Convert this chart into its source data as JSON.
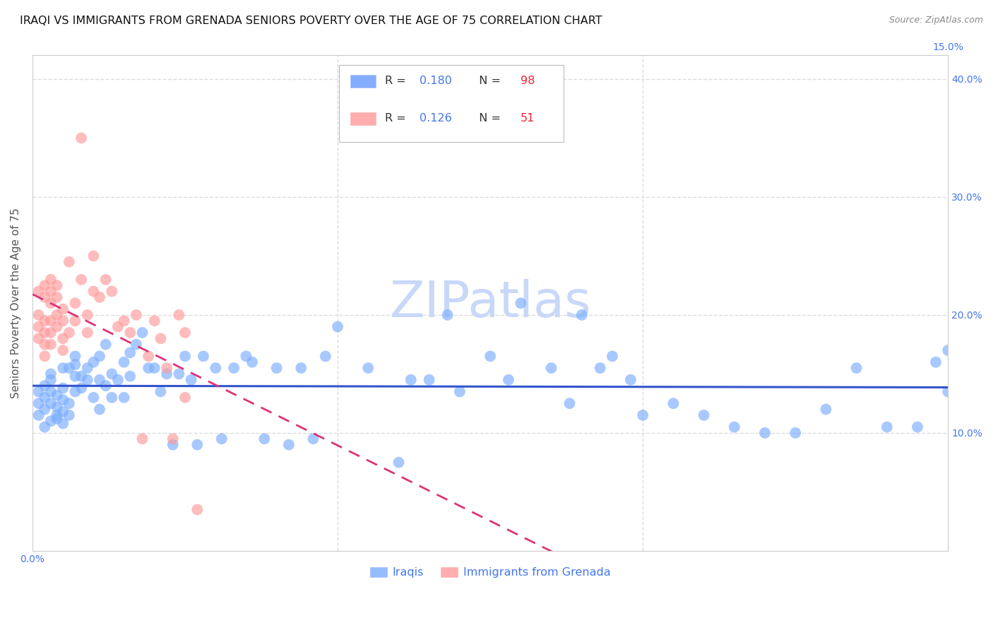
{
  "title": "IRAQI VS IMMIGRANTS FROM GRENADA SENIORS POVERTY OVER THE AGE OF 75 CORRELATION CHART",
  "source": "Source: ZipAtlas.com",
  "ylabel": "Seniors Poverty Over the Age of 75",
  "xlim": [
    0.0,
    0.15
  ],
  "ylim": [
    0.0,
    0.42
  ],
  "xticks": [
    0.0,
    0.05,
    0.1,
    0.15
  ],
  "xticklabels": [
    "0.0%",
    "",
    "",
    "15.0%"
  ],
  "yticks": [
    0.1,
    0.2,
    0.3,
    0.4
  ],
  "yticklabels": [
    "10.0%",
    "20.0%",
    "30.0%",
    "40.0%"
  ],
  "watermark": "ZIPatlas",
  "iraqis": {
    "color": "#7aadff",
    "line_color": "#3355cc",
    "line_style": "solid",
    "R": 0.18,
    "N": 98,
    "x": [
      0.001,
      0.001,
      0.001,
      0.002,
      0.002,
      0.002,
      0.002,
      0.003,
      0.003,
      0.003,
      0.003,
      0.003,
      0.004,
      0.004,
      0.004,
      0.004,
      0.005,
      0.005,
      0.005,
      0.005,
      0.005,
      0.006,
      0.006,
      0.006,
      0.007,
      0.007,
      0.007,
      0.007,
      0.008,
      0.008,
      0.009,
      0.009,
      0.01,
      0.01,
      0.011,
      0.011,
      0.011,
      0.012,
      0.012,
      0.013,
      0.013,
      0.014,
      0.015,
      0.015,
      0.016,
      0.016,
      0.017,
      0.018,
      0.019,
      0.02,
      0.021,
      0.022,
      0.023,
      0.024,
      0.025,
      0.026,
      0.027,
      0.028,
      0.03,
      0.031,
      0.033,
      0.035,
      0.036,
      0.038,
      0.04,
      0.042,
      0.044,
      0.046,
      0.048,
      0.05,
      0.055,
      0.06,
      0.062,
      0.065,
      0.068,
      0.07,
      0.075,
      0.078,
      0.08,
      0.085,
      0.088,
      0.09,
      0.093,
      0.095,
      0.098,
      0.1,
      0.105,
      0.11,
      0.115,
      0.12,
      0.125,
      0.13,
      0.135,
      0.14,
      0.145,
      0.148,
      0.15,
      0.15
    ],
    "y": [
      0.115,
      0.125,
      0.135,
      0.105,
      0.12,
      0.13,
      0.14,
      0.11,
      0.125,
      0.135,
      0.145,
      0.15,
      0.112,
      0.122,
      0.132,
      0.115,
      0.118,
      0.128,
      0.138,
      0.108,
      0.155,
      0.115,
      0.125,
      0.155,
      0.148,
      0.158,
      0.135,
      0.165,
      0.138,
      0.148,
      0.155,
      0.145,
      0.13,
      0.16,
      0.12,
      0.145,
      0.165,
      0.14,
      0.175,
      0.13,
      0.15,
      0.145,
      0.16,
      0.13,
      0.148,
      0.168,
      0.175,
      0.185,
      0.155,
      0.155,
      0.135,
      0.15,
      0.09,
      0.15,
      0.165,
      0.145,
      0.09,
      0.165,
      0.155,
      0.095,
      0.155,
      0.165,
      0.16,
      0.095,
      0.155,
      0.09,
      0.155,
      0.095,
      0.165,
      0.19,
      0.155,
      0.075,
      0.145,
      0.145,
      0.2,
      0.135,
      0.165,
      0.145,
      0.21,
      0.155,
      0.125,
      0.2,
      0.155,
      0.165,
      0.145,
      0.115,
      0.125,
      0.115,
      0.105,
      0.1,
      0.1,
      0.12,
      0.155,
      0.105,
      0.105,
      0.16,
      0.135,
      0.17
    ]
  },
  "grenada": {
    "color": "#ff9999",
    "line_color": "#dd3377",
    "line_style": "dashed",
    "R": 0.126,
    "N": 51,
    "x": [
      0.001,
      0.001,
      0.001,
      0.001,
      0.002,
      0.002,
      0.002,
      0.002,
      0.002,
      0.002,
      0.003,
      0.003,
      0.003,
      0.003,
      0.003,
      0.003,
      0.004,
      0.004,
      0.004,
      0.004,
      0.005,
      0.005,
      0.005,
      0.005,
      0.006,
      0.006,
      0.007,
      0.007,
      0.008,
      0.008,
      0.009,
      0.009,
      0.01,
      0.01,
      0.011,
      0.012,
      0.013,
      0.014,
      0.015,
      0.016,
      0.017,
      0.018,
      0.019,
      0.02,
      0.021,
      0.022,
      0.023,
      0.024,
      0.025,
      0.025,
      0.027
    ],
    "y": [
      0.2,
      0.19,
      0.18,
      0.22,
      0.175,
      0.185,
      0.195,
      0.215,
      0.225,
      0.165,
      0.175,
      0.185,
      0.195,
      0.21,
      0.22,
      0.23,
      0.19,
      0.2,
      0.215,
      0.225,
      0.18,
      0.195,
      0.205,
      0.17,
      0.245,
      0.185,
      0.195,
      0.21,
      0.35,
      0.23,
      0.185,
      0.2,
      0.25,
      0.22,
      0.215,
      0.23,
      0.22,
      0.19,
      0.195,
      0.185,
      0.2,
      0.095,
      0.165,
      0.195,
      0.18,
      0.155,
      0.095,
      0.2,
      0.13,
      0.185,
      0.035
    ]
  },
  "background_color": "#ffffff",
  "grid_color": "#dddddd",
  "spine_color": "#cccccc",
  "tick_label_color": "#4477ee",
  "title_color": "#111111",
  "title_fontsize": 11.5,
  "ylabel_fontsize": 11,
  "tick_fontsize": 10,
  "watermark_color": "#c8d8f8",
  "watermark_fontsize": 52,
  "legend_box_color": "#6699ff",
  "legend_box_color2": "#ff9999",
  "legend_R_color": "#4477ee",
  "legend_N_color": "#ee2233",
  "source_color": "#888888",
  "source_fontsize": 9
}
